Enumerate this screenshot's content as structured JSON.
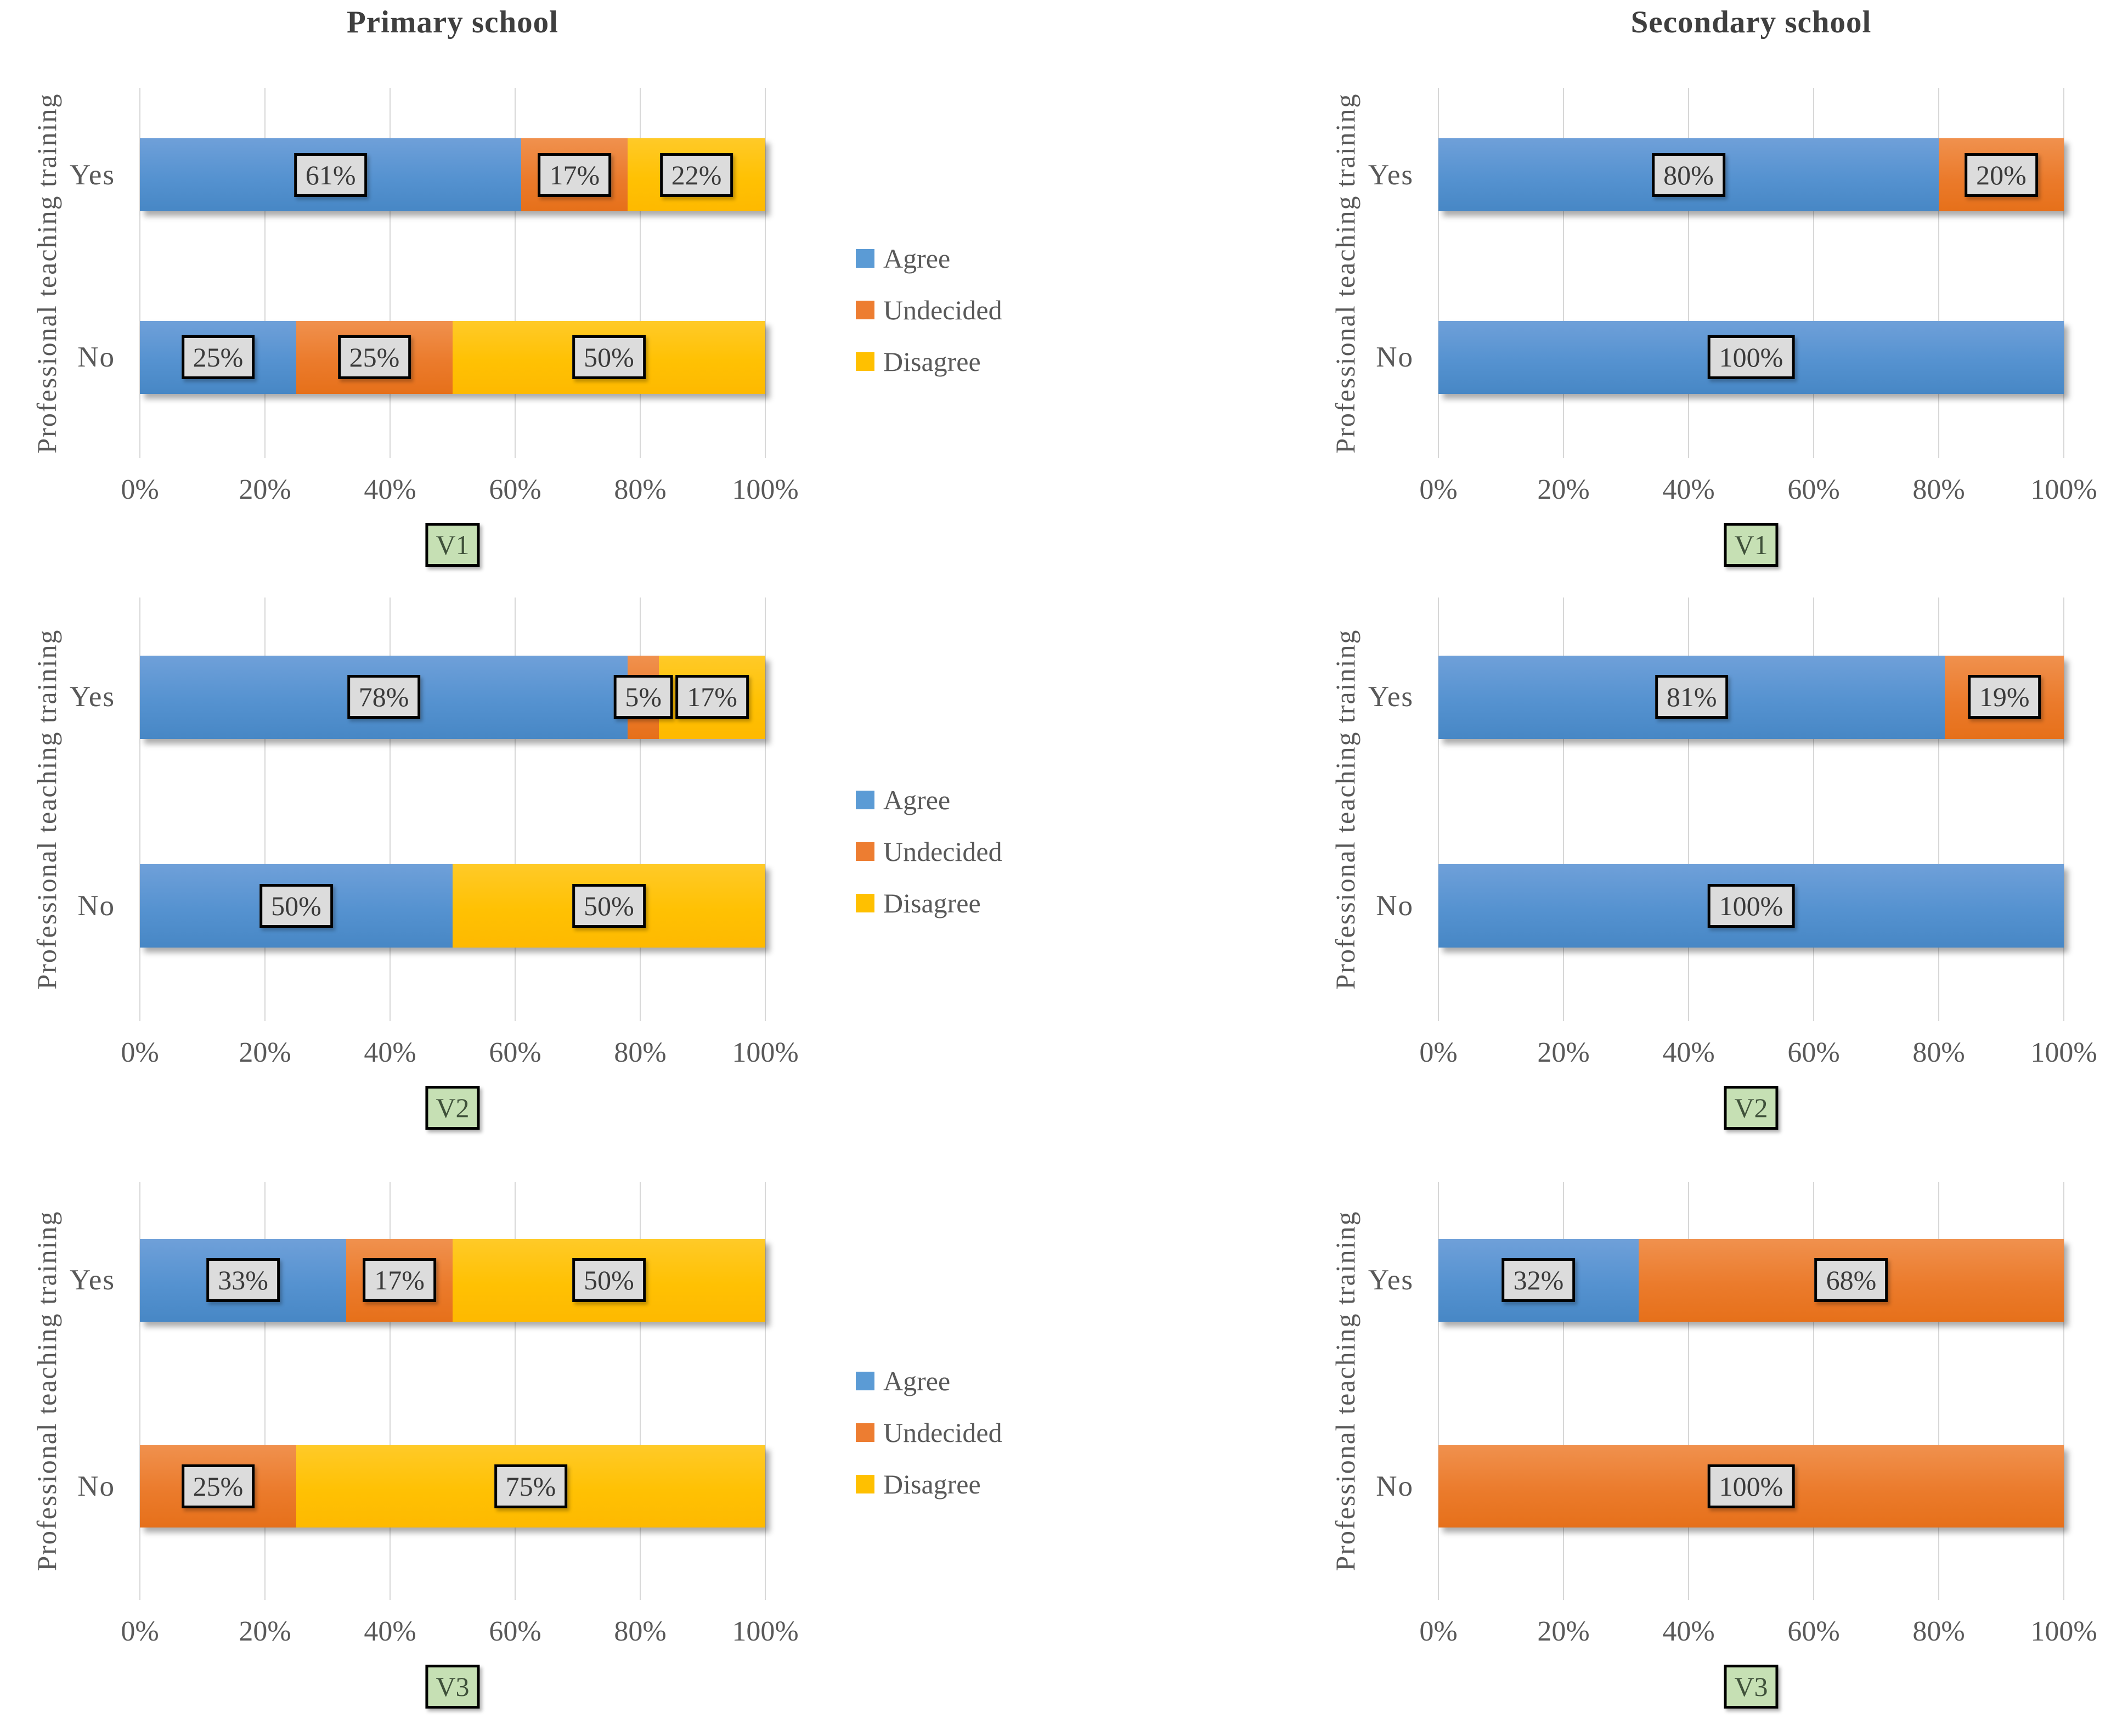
{
  "figure": {
    "y_axis_label": "Professional teaching training",
    "columns": [
      {
        "title": "Primary school"
      },
      {
        "title": "Secondary school"
      }
    ]
  },
  "colors": {
    "agree": "#5B9BD5",
    "undecided": "#ED7D31",
    "disagree": "#FFC000",
    "data_label_bg": "#DCDCDC",
    "variable_label_bg": "#C6E0B4",
    "axis_text": "#595959",
    "title_text": "#3F3F3F",
    "gridline": "#D7D7D7"
  },
  "legend": {
    "position": "right-of-primary-charts",
    "items": [
      {
        "name": "Agree",
        "series": "agree",
        "color": "#5B9BD5"
      },
      {
        "name": "Undecided",
        "series": "undecided",
        "color": "#ED7D31"
      },
      {
        "name": "Disagree",
        "series": "disagree",
        "color": "#FFC000"
      }
    ]
  },
  "x_axis": {
    "range": [
      0,
      100
    ],
    "grid": true,
    "ticks": [
      {
        "pos": 0,
        "label": "0%"
      },
      {
        "pos": 20,
        "label": "20%"
      },
      {
        "pos": 40,
        "label": "40%"
      },
      {
        "pos": 60,
        "label": "60%"
      },
      {
        "pos": 80,
        "label": "80%"
      },
      {
        "pos": 100,
        "label": "100%"
      }
    ]
  },
  "chart_data": [
    {
      "id": "primary-v1",
      "type": "bar",
      "stacked": true,
      "orientation": "horizontal",
      "column_title": "Primary school",
      "variable_label": "V1",
      "show_legend": true,
      "xlim": [
        0,
        100
      ],
      "categories": [
        "Yes",
        "No"
      ],
      "bars": [
        {
          "category": "Yes",
          "segments": [
            {
              "series": "agree",
              "name": "Agree",
              "value": 61,
              "label": "61%"
            },
            {
              "series": "undecided",
              "name": "Undecided",
              "value": 17,
              "label": "17%"
            },
            {
              "series": "disagree",
              "name": "Disagree",
              "value": 22,
              "label": "22%"
            }
          ]
        },
        {
          "category": "No",
          "segments": [
            {
              "series": "agree",
              "name": "Agree",
              "value": 25,
              "label": "25%"
            },
            {
              "series": "undecided",
              "name": "Undecided",
              "value": 25,
              "label": "25%"
            },
            {
              "series": "disagree",
              "name": "Disagree",
              "value": 50,
              "label": "50%"
            }
          ]
        }
      ]
    },
    {
      "id": "secondary-v1",
      "type": "bar",
      "stacked": true,
      "orientation": "horizontal",
      "column_title": "Secondary school",
      "variable_label": "V1",
      "show_legend": false,
      "xlim": [
        0,
        100
      ],
      "categories": [
        "Yes",
        "No"
      ],
      "bars": [
        {
          "category": "Yes",
          "segments": [
            {
              "series": "agree",
              "name": "Agree",
              "value": 80,
              "label": "80%"
            },
            {
              "series": "undecided",
              "name": "Undecided",
              "value": 20,
              "label": "20%"
            }
          ]
        },
        {
          "category": "No",
          "segments": [
            {
              "series": "agree",
              "name": "Agree",
              "value": 100,
              "label": "100%"
            }
          ]
        }
      ]
    },
    {
      "id": "primary-v2",
      "type": "bar",
      "stacked": true,
      "orientation": "horizontal",
      "column_title": "Primary school",
      "variable_label": "V2",
      "show_legend": true,
      "xlim": [
        0,
        100
      ],
      "categories": [
        "Yes",
        "No"
      ],
      "bars": [
        {
          "category": "Yes",
          "segments": [
            {
              "series": "agree",
              "name": "Agree",
              "value": 78,
              "label": "78%"
            },
            {
              "series": "undecided",
              "name": "Undecided",
              "value": 5,
              "label": "5%"
            },
            {
              "series": "disagree",
              "name": "Disagree",
              "value": 17,
              "label": "17%"
            }
          ]
        },
        {
          "category": "No",
          "segments": [
            {
              "series": "agree",
              "name": "Agree",
              "value": 50,
              "label": "50%"
            },
            {
              "series": "disagree",
              "name": "Disagree",
              "value": 50,
              "label": "50%"
            }
          ]
        }
      ]
    },
    {
      "id": "secondary-v2",
      "type": "bar",
      "stacked": true,
      "orientation": "horizontal",
      "column_title": "Secondary school",
      "variable_label": "V2",
      "show_legend": false,
      "xlim": [
        0,
        100
      ],
      "categories": [
        "Yes",
        "No"
      ],
      "bars": [
        {
          "category": "Yes",
          "segments": [
            {
              "series": "agree",
              "name": "Agree",
              "value": 81,
              "label": "81%"
            },
            {
              "series": "undecided",
              "name": "Undecided",
              "value": 19,
              "label": "19%"
            }
          ]
        },
        {
          "category": "No",
          "segments": [
            {
              "series": "agree",
              "name": "Agree",
              "value": 100,
              "label": "100%"
            }
          ]
        }
      ]
    },
    {
      "id": "primary-v3",
      "type": "bar",
      "stacked": true,
      "orientation": "horizontal",
      "column_title": "Primary school",
      "variable_label": "V3",
      "show_legend": true,
      "xlim": [
        0,
        100
      ],
      "categories": [
        "Yes",
        "No"
      ],
      "bars": [
        {
          "category": "Yes",
          "segments": [
            {
              "series": "agree",
              "name": "Agree",
              "value": 33,
              "label": "33%"
            },
            {
              "series": "undecided",
              "name": "Undecided",
              "value": 17,
              "label": "17%"
            },
            {
              "series": "disagree",
              "name": "Disagree",
              "value": 50,
              "label": "50%"
            }
          ]
        },
        {
          "category": "No",
          "segments": [
            {
              "series": "undecided",
              "name": "Undecided",
              "value": 25,
              "label": "25%"
            },
            {
              "series": "disagree",
              "name": "Disagree",
              "value": 75,
              "label": "75%"
            }
          ]
        }
      ]
    },
    {
      "id": "secondary-v3",
      "type": "bar",
      "stacked": true,
      "orientation": "horizontal",
      "column_title": "Secondary school",
      "variable_label": "V3",
      "show_legend": false,
      "xlim": [
        0,
        100
      ],
      "categories": [
        "Yes",
        "No"
      ],
      "bars": [
        {
          "category": "Yes",
          "segments": [
            {
              "series": "agree",
              "name": "Agree",
              "value": 32,
              "label": "32%"
            },
            {
              "series": "undecided",
              "name": "Undecided",
              "value": 68,
              "label": "68%"
            }
          ]
        },
        {
          "category": "No",
          "segments": [
            {
              "series": "undecided",
              "name": "Undecided",
              "value": 100,
              "label": "100%"
            }
          ]
        }
      ]
    }
  ]
}
